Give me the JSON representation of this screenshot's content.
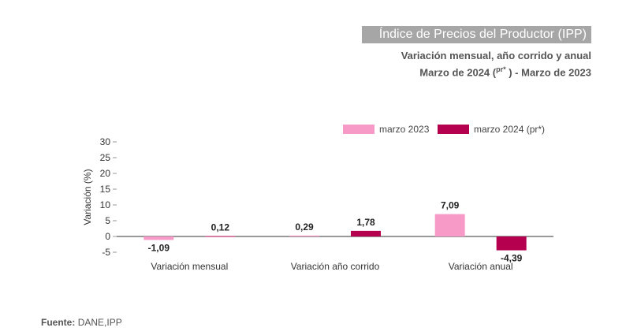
{
  "header": {
    "title": "Índice de Precios del Productor (IPP)",
    "subtitle1": "Variación mensual, año corrido y anual",
    "subtitle2_prefix": "Marzo de 2024 (",
    "subtitle2_sup": "pr*",
    "subtitle2_suffix": " ) - Marzo de 2023"
  },
  "source": {
    "label": "Fuente:",
    "value": "DANE,IPP"
  },
  "colors": {
    "marzo2023": "#f79ac8",
    "marzo2024": "#b5004f"
  },
  "chart_data": {
    "type": "bar",
    "categories": [
      "Variación mensual",
      "Variación año corrido",
      "Variación anual"
    ],
    "series": [
      {
        "name": "marzo 2023",
        "values": [
          -1.09,
          0.29,
          7.09
        ],
        "labels": [
          "-1,09",
          "0,29",
          "7,09"
        ]
      },
      {
        "name": "marzo 2024 (pr*)",
        "values": [
          0.12,
          1.78,
          -4.39
        ],
        "labels": [
          "0,12",
          "1,78",
          "-4,39"
        ]
      }
    ],
    "ylabel": "Variación (%)",
    "xlabel": "",
    "ylim": [
      -5,
      30
    ],
    "yticks": [
      "-5",
      "0",
      "5",
      "10",
      "15",
      "20",
      "25",
      "30"
    ],
    "ytick_values": [
      -5,
      0,
      5,
      10,
      15,
      20,
      25,
      30
    ],
    "legend": "top-right",
    "grid": false
  }
}
